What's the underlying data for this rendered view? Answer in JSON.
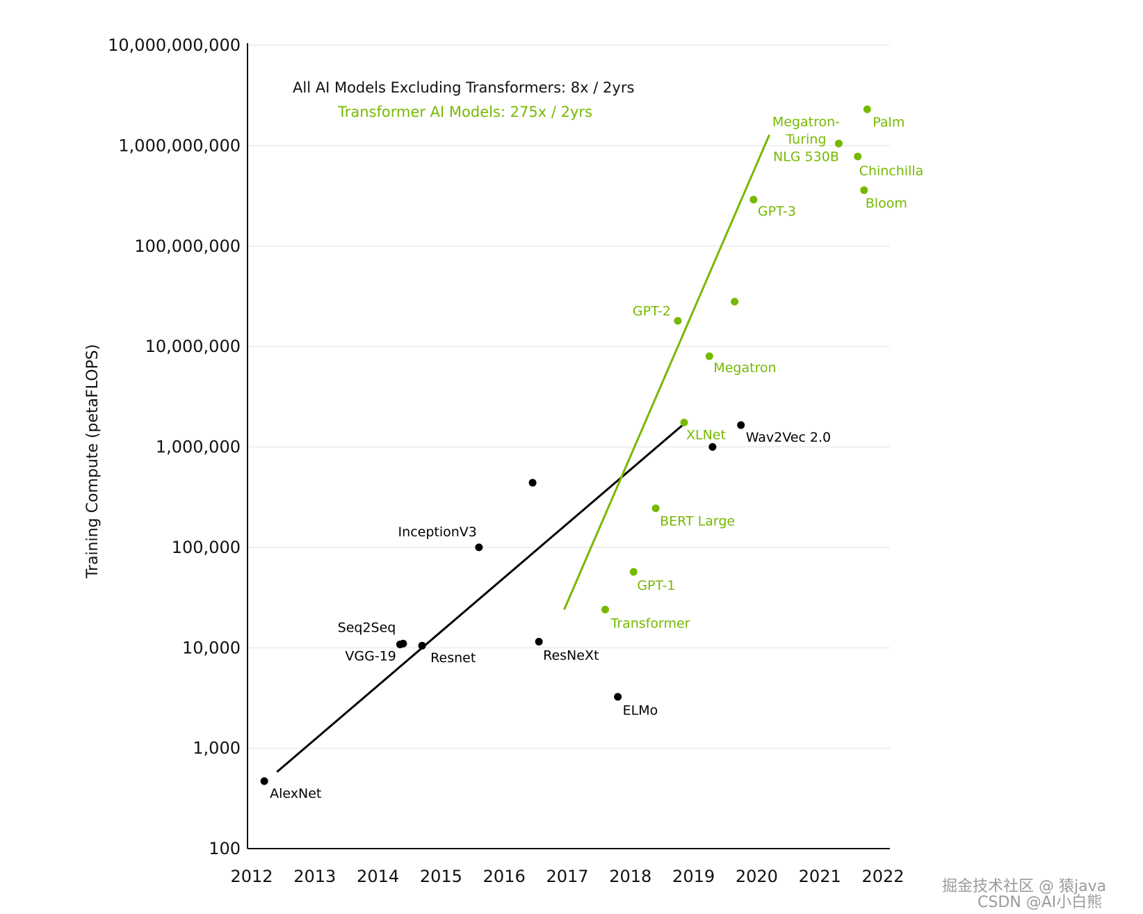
{
  "chart_data": {
    "type": "scatter",
    "title": "",
    "xlabel": "",
    "ylabel": "Training Compute (petaFLOPS)",
    "yscale": "log",
    "xlim": [
      2012,
      2022
    ],
    "ylim": [
      100,
      10000000000
    ],
    "x_ticks": [
      "2012",
      "2013",
      "2014",
      "2015",
      "2016",
      "2017",
      "2018",
      "2019",
      "2020",
      "2021",
      "2022"
    ],
    "y_ticks": [
      "10,000,000,000",
      "1,000,000,000",
      "100,000,000",
      "10,000,000",
      "1,000,000",
      "100,000",
      "10,000",
      "1,000",
      "100"
    ],
    "y_tick_values": [
      10000000000,
      1000000000,
      100000000,
      10000000,
      1000000,
      100000,
      10000,
      1000,
      100
    ],
    "colors": {
      "non_transformer": "#000000",
      "transformer": "#76b900",
      "grid": "#e6e6e6"
    },
    "legend": {
      "non_transformer": "All AI Models Excluding Transformers: 8x / 2yrs",
      "transformer": "Transformer AI Models: 275x / 2yrs"
    },
    "series": [
      {
        "name": "All AI Models Excluding Transformers",
        "color": "#000000",
        "points": [
          {
            "x": 2012.2,
            "y": 470,
            "label": "AlexNet",
            "anchor": "start",
            "dx": 8,
            "dy": 24
          },
          {
            "x": 2014.35,
            "y": 10800,
            "label": "Seq2Seq",
            "anchor": "end",
            "dx": -6,
            "dy": -18
          },
          {
            "x": 2014.4,
            "y": 11000,
            "label": "VGG-19",
            "anchor": "end",
            "dx": -10,
            "dy": 24
          },
          {
            "x": 2014.7,
            "y": 10500,
            "label": "Resnet",
            "anchor": "start",
            "dx": 12,
            "dy": 24
          },
          {
            "x": 2015.6,
            "y": 100000,
            "label": "InceptionV3",
            "anchor": "end",
            "dx": -3,
            "dy": -16
          },
          {
            "x": 2016.45,
            "y": 440000,
            "label": "",
            "anchor": "start",
            "dx": 0,
            "dy": 0
          },
          {
            "x": 2016.55,
            "y": 11500,
            "label": "ResNeXt",
            "anchor": "start",
            "dx": 6,
            "dy": 26
          },
          {
            "x": 2017.8,
            "y": 3250,
            "label": "ELMo",
            "anchor": "start",
            "dx": 7,
            "dy": 26
          },
          {
            "x": 2019.3,
            "y": 1000000,
            "label": "",
            "anchor": "start",
            "dx": 0,
            "dy": 0
          },
          {
            "x": 2019.75,
            "y": 1650000,
            "label": "Wav2Vec 2.0",
            "anchor": "start",
            "dx": 7,
            "dy": 24
          }
        ],
        "trend": {
          "x0": 2012.4,
          "y0": 580,
          "x1": 2018.85,
          "y1": 1700000
        }
      },
      {
        "name": "Transformer AI Models",
        "color": "#76b900",
        "points": [
          {
            "x": 2017.6,
            "y": 24000,
            "label": "Transformer",
            "anchor": "start",
            "dx": 8,
            "dy": 26
          },
          {
            "x": 2018.05,
            "y": 57000,
            "label": "GPT-1",
            "anchor": "start",
            "dx": 5,
            "dy": 26
          },
          {
            "x": 2018.4,
            "y": 245000,
            "label": "BERT Large",
            "anchor": "start",
            "dx": 6,
            "dy": 25
          },
          {
            "x": 2018.85,
            "y": 1750000,
            "label": "XLNet",
            "anchor": "start",
            "dx": 3,
            "dy": 24
          },
          {
            "x": 2018.75,
            "y": 18000000,
            "label": "GPT-2",
            "anchor": "end",
            "dx": -10,
            "dy": -8
          },
          {
            "x": 2019.25,
            "y": 8000000,
            "label": "Megatron",
            "anchor": "start",
            "dx": 6,
            "dy": 23
          },
          {
            "x": 2019.65,
            "y": 28000000,
            "label": "",
            "anchor": "start",
            "dx": 0,
            "dy": 0
          },
          {
            "x": 2019.95,
            "y": 290000000,
            "label": "GPT-3",
            "anchor": "start",
            "dx": 6,
            "dy": 23
          },
          {
            "x": 2021.3,
            "y": 1050000000,
            "label": "Megatron-Turing NLG 530B",
            "anchor": "end",
            "dx": 0,
            "dy": 0
          },
          {
            "x": 2021.75,
            "y": 2300000000,
            "label": "Palm",
            "anchor": "start",
            "dx": 8,
            "dy": 25
          },
          {
            "x": 2021.6,
            "y": 780000000,
            "label": "Chinchilla",
            "anchor": "start",
            "dx": 2,
            "dy": 27
          },
          {
            "x": 2021.7,
            "y": 360000000,
            "label": "Bloom",
            "anchor": "start",
            "dx": 2,
            "dy": 25
          }
        ],
        "trend": {
          "x0": 2016.95,
          "y0": 24000,
          "x1": 2020.2,
          "y1": 1280000000
        }
      }
    ],
    "multiline_labels": {
      "Megatron-Turing NLG 530B": [
        "Megatron-",
        "Turing",
        "NLG 530B"
      ]
    },
    "watermark": {
      "line1": "掘金技术社区 @ 猿java",
      "line2": "CSDN @AI小白熊"
    }
  }
}
